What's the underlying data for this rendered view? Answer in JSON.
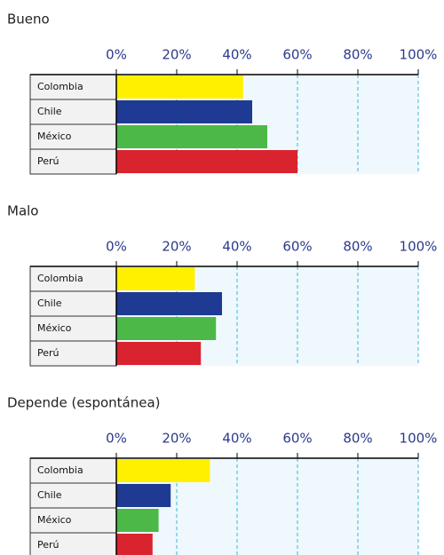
{
  "chart_data": [
    {
      "type": "bar",
      "title": "Bueno",
      "categories": [
        "Colombia",
        "Chile",
        "México",
        "Perú"
      ],
      "values": [
        42,
        45,
        50,
        60
      ],
      "colors": [
        "#fff000",
        "#1f3a93",
        "#4cb848",
        "#d9232e"
      ],
      "xlim": [
        0,
        100
      ],
      "xticks": [
        {
          "value": 0,
          "label": "0%"
        },
        {
          "value": 20,
          "label": "20%"
        },
        {
          "value": 40,
          "label": "40%"
        },
        {
          "value": 60,
          "label": "60%"
        },
        {
          "value": 80,
          "label": "80%"
        },
        {
          "value": 100,
          "label": "100%"
        }
      ],
      "grid": true
    },
    {
      "type": "bar",
      "title": "Malo",
      "categories": [
        "Colombia",
        "Chile",
        "México",
        "Perú"
      ],
      "values": [
        26,
        35,
        33,
        28
      ],
      "colors": [
        "#fff000",
        "#1f3a93",
        "#4cb848",
        "#d9232e"
      ],
      "xlim": [
        0,
        100
      ],
      "xticks": [
        {
          "value": 0,
          "label": "0%"
        },
        {
          "value": 20,
          "label": "20%"
        },
        {
          "value": 40,
          "label": "40%"
        },
        {
          "value": 60,
          "label": "60%"
        },
        {
          "value": 80,
          "label": "80%"
        },
        {
          "value": 100,
          "label": "100%"
        }
      ],
      "grid": true
    },
    {
      "type": "bar",
      "title": "Depende (espontánea)",
      "categories": [
        "Colombia",
        "Chile",
        "México",
        "Perú"
      ],
      "values": [
        31,
        18,
        14,
        12
      ],
      "colors": [
        "#fff000",
        "#1f3a93",
        "#4cb848",
        "#d9232e"
      ],
      "xlim": [
        0,
        100
      ],
      "xticks": [
        {
          "value": 0,
          "label": "0%"
        },
        {
          "value": 20,
          "label": "20%"
        },
        {
          "value": 40,
          "label": "40%"
        },
        {
          "value": 60,
          "label": "60%"
        },
        {
          "value": 80,
          "label": "80%"
        },
        {
          "value": 100,
          "label": "100%"
        }
      ],
      "grid": true
    }
  ]
}
